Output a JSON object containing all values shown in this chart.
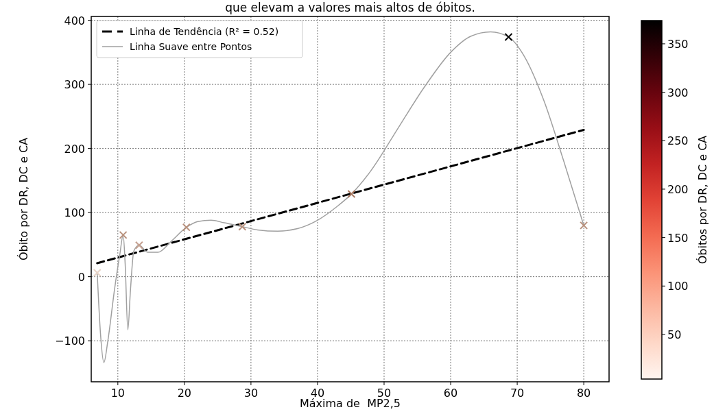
{
  "chart_data": {
    "type": "scatter",
    "title": "que elevam a valores mais altos de óbitos.",
    "xlabel": "Máxima de  MP2,5",
    "ylabel": "Óbito por DR, DC e CA",
    "clabel": "Óbitos por DR, DC e CA",
    "xlim": [
      6,
      83.8
    ],
    "xticks": [
      10,
      20,
      30,
      40,
      50,
      60,
      70,
      80
    ],
    "ylim": [
      -164,
      406
    ],
    "yticks": [
      -100,
      0,
      100,
      200,
      300,
      400
    ],
    "clim": [
      4,
      374
    ],
    "cticks": [
      50,
      100,
      150,
      200,
      250,
      300,
      350
    ],
    "grid": true,
    "legend": "top left",
    "marker": "cross",
    "series": [
      {
        "type": "line",
        "name": "Linha de Tendência (R² = 0.52)",
        "color": "#000000",
        "line_style": "dashed",
        "marker": "none",
        "x": [
          6.9,
          80
        ],
        "values": [
          21,
          229
        ]
      },
      {
        "type": "line",
        "name": "Linha Suave entre Pontos",
        "color": "#a0a0a0",
        "line_style": "solid",
        "marker": "none",
        "x": [
          6.9,
          7.4,
          7.9,
          8.5,
          9.5,
          10.3,
          10.8,
          11.1,
          11.5,
          11.9,
          12.4,
          13.2,
          14.5,
          16,
          18,
          20.3,
          22,
          24,
          26,
          28.7,
          31,
          34,
          37,
          40,
          43,
          45.1,
          48,
          52,
          56,
          60,
          63,
          66,
          68.7,
          71,
          74,
          77,
          80
        ],
        "values": [
          6,
          -90,
          -134,
          -100,
          -20,
          35,
          65,
          20,
          -83,
          -20,
          40,
          49,
          38,
          38,
          55,
          77,
          86,
          88,
          84,
          78,
          73,
          71,
          75,
          88,
          110,
          129,
          165,
          230,
          295,
          350,
          375,
          382,
          374,
          345,
          275,
          180,
          80
        ]
      },
      {
        "type": "scatter",
        "x": [
          6.9,
          10.8,
          13.2,
          20.3,
          28.7,
          45.1,
          68.7,
          80
        ],
        "values": [
          6,
          65,
          49,
          77,
          78,
          129,
          374,
          80
        ],
        "colors": [
          "#e8d4c8",
          "#b8907c",
          "#c4a090",
          "#b8907c",
          "#b8907c",
          "#a87860",
          "#000000",
          "#b8907c"
        ]
      }
    ]
  }
}
